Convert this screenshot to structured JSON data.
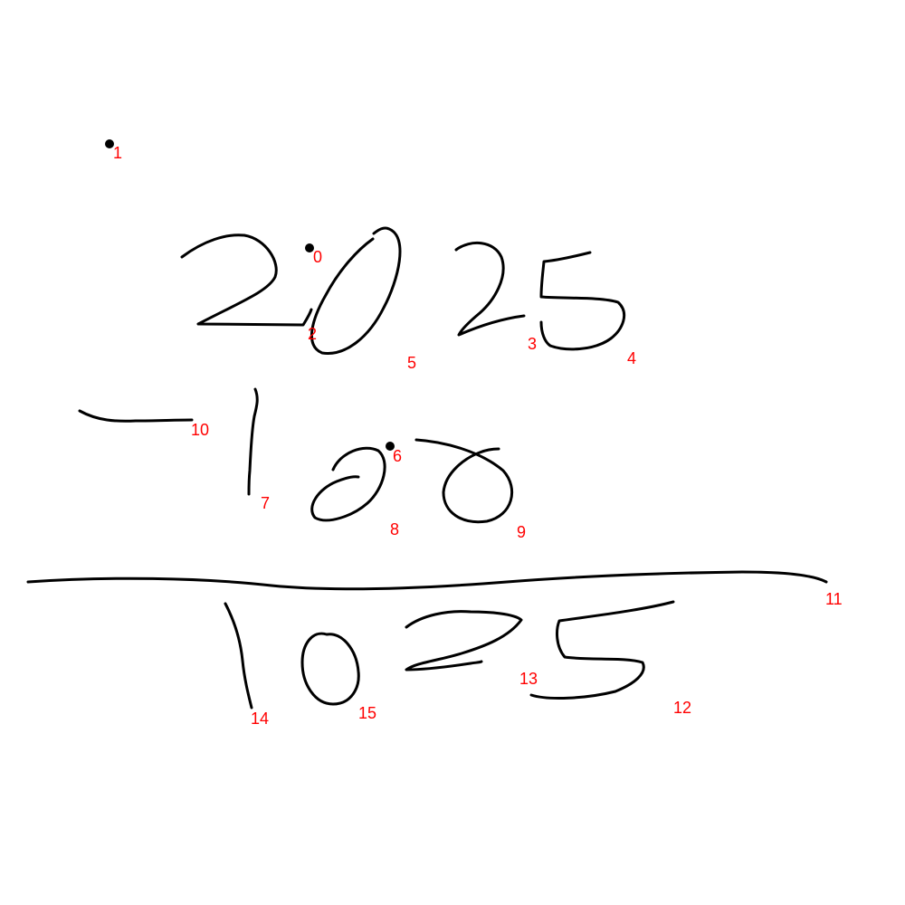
{
  "colors": {
    "background": "#ffffff",
    "ink": "#000000",
    "label": "#ff0000"
  },
  "strokes": [
    {
      "id": "0",
      "kind": "dot",
      "label": "0"
    },
    {
      "id": "1",
      "kind": "dot",
      "label": "1"
    },
    {
      "id": "2",
      "kind": "stroke",
      "label": "2"
    },
    {
      "id": "3",
      "kind": "stroke",
      "label": "3"
    },
    {
      "id": "4",
      "kind": "stroke",
      "label": "4"
    },
    {
      "id": "5",
      "kind": "stroke",
      "label": "5"
    },
    {
      "id": "6",
      "kind": "dot",
      "label": "6"
    },
    {
      "id": "7",
      "kind": "stroke",
      "label": "7"
    },
    {
      "id": "8",
      "kind": "stroke",
      "label": "8"
    },
    {
      "id": "9",
      "kind": "stroke",
      "label": "9"
    },
    {
      "id": "10",
      "kind": "stroke",
      "label": "10"
    },
    {
      "id": "11",
      "kind": "stroke",
      "label": "11"
    },
    {
      "id": "12",
      "kind": "stroke",
      "label": "12"
    },
    {
      "id": "13",
      "kind": "stroke",
      "label": "13"
    },
    {
      "id": "14",
      "kind": "stroke",
      "label": "14"
    },
    {
      "id": "15",
      "kind": "stroke",
      "label": "15"
    }
  ]
}
